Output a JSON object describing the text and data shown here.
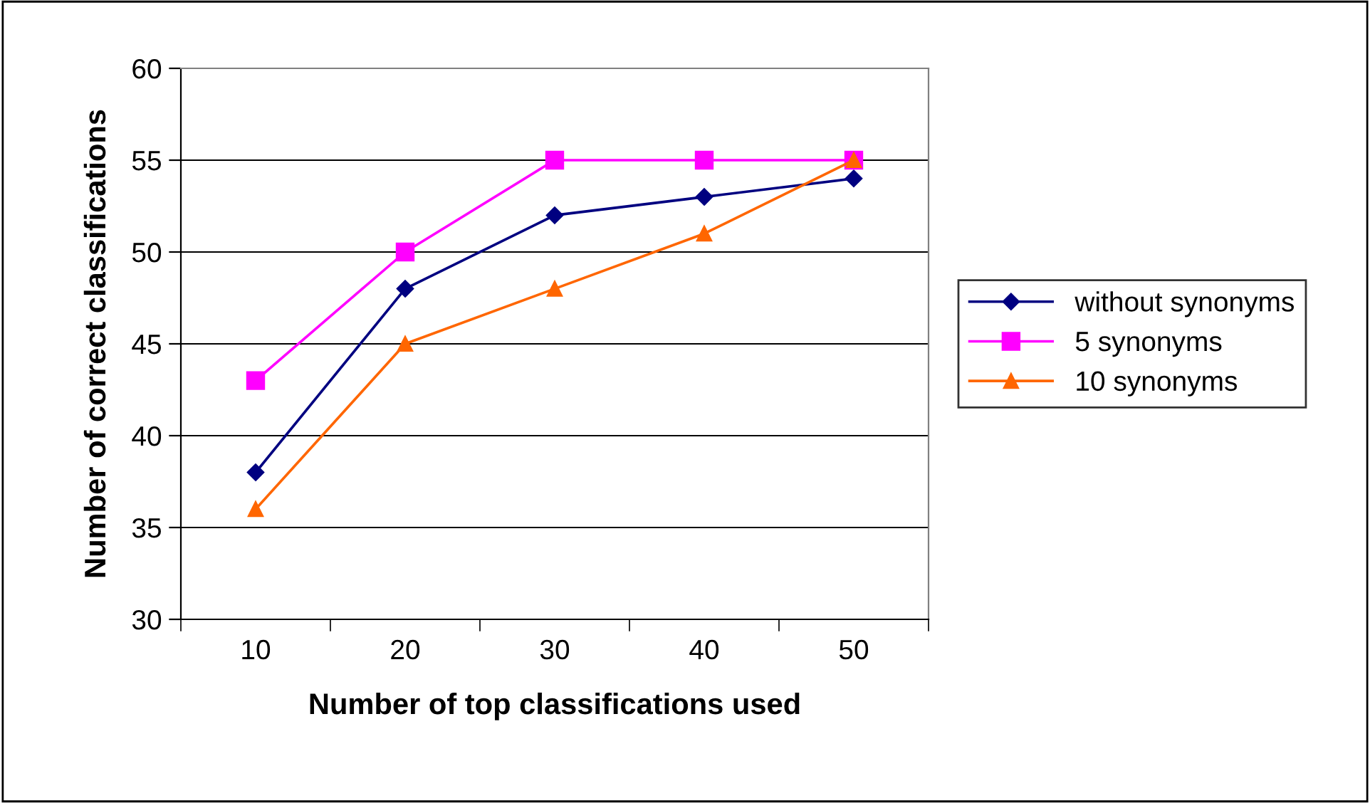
{
  "chart_data": {
    "type": "line",
    "xlabel": "Number of top classifications used",
    "ylabel": "Number of correct classifications",
    "categories": [
      "10",
      "20",
      "30",
      "40",
      "50"
    ],
    "series": [
      {
        "name": "without synonyms",
        "color": "#000080",
        "marker": "diamond",
        "values": [
          38,
          48,
          52,
          53,
          54
        ]
      },
      {
        "name": "5 synonyms",
        "color": "#ff00ff",
        "marker": "square",
        "values": [
          43,
          50,
          55,
          55,
          55
        ]
      },
      {
        "name": "10 synonyms",
        "color": "#ff6600",
        "marker": "triangle",
        "values": [
          36,
          45,
          48,
          51,
          55
        ]
      }
    ],
    "ylim": [
      30,
      60
    ],
    "yticks": [
      30,
      35,
      40,
      45,
      50,
      55,
      60
    ],
    "grid": "y",
    "legend": "right"
  }
}
